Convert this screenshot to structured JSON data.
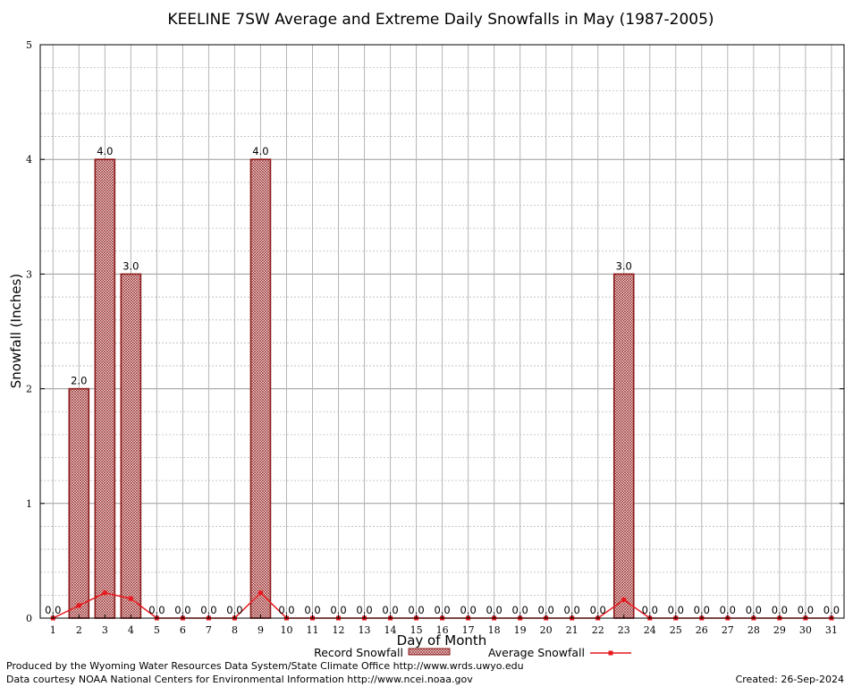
{
  "chart_data": {
    "type": "bar",
    "title": "KEELINE 7SW Average and Extreme Daily Snowfalls in May (1987-2005)",
    "xlabel": "Day of Month",
    "ylabel": "Snowfall (Inches)",
    "ylim": [
      0,
      5
    ],
    "yticks": [
      "0",
      "1",
      "2",
      "3",
      "4",
      "5"
    ],
    "grid": true,
    "legend_position": "bottom",
    "categories": [
      "1",
      "2",
      "3",
      "4",
      "5",
      "6",
      "7",
      "8",
      "9",
      "10",
      "11",
      "12",
      "13",
      "14",
      "15",
      "16",
      "17",
      "18",
      "19",
      "20",
      "21",
      "22",
      "23",
      "24",
      "25",
      "26",
      "27",
      "28",
      "29",
      "30",
      "31"
    ],
    "series": [
      {
        "name": "Record Snowfall",
        "type": "bar",
        "color": "#b22222",
        "values": [
          0,
          2,
          4,
          3,
          0,
          0,
          0,
          0,
          4,
          0,
          0,
          0,
          0,
          0,
          0,
          0,
          0,
          0,
          0,
          0,
          0,
          0,
          3,
          0,
          0,
          0,
          0,
          0,
          0,
          0,
          0
        ],
        "labels": [
          "0.0",
          "2.0",
          "4.0",
          "3.0",
          "0.0",
          "0.0",
          "0.0",
          "0.0",
          "4.0",
          "0.0",
          "0.0",
          "0.0",
          "0.0",
          "0.0",
          "0.0",
          "0.0",
          "0.0",
          "0.0",
          "0.0",
          "0.0",
          "0.0",
          "0.0",
          "3.0",
          "0.0",
          "0.0",
          "0.0",
          "0.0",
          "0.0",
          "0.0",
          "0.0",
          "0.0"
        ]
      },
      {
        "name": "Average Snowfall",
        "type": "line",
        "color": "#e8191e",
        "values": [
          0,
          0.11,
          0.22,
          0.17,
          0,
          0,
          0,
          0,
          0.22,
          0,
          0,
          0,
          0,
          0,
          0,
          0,
          0,
          0,
          0,
          0,
          0,
          0,
          0.16,
          0,
          0,
          0,
          0,
          0,
          0,
          0,
          0
        ]
      }
    ]
  },
  "footer": {
    "produced_by": "Produced by the Wyoming Water Resources Data System/State Climate Office http://www.wrds.uwyo.edu",
    "courtesy": "Data courtesy NOAA National Centers for Environmental Information http://www.ncei.noaa.gov",
    "created": "Created:  26-Sep-2024"
  }
}
